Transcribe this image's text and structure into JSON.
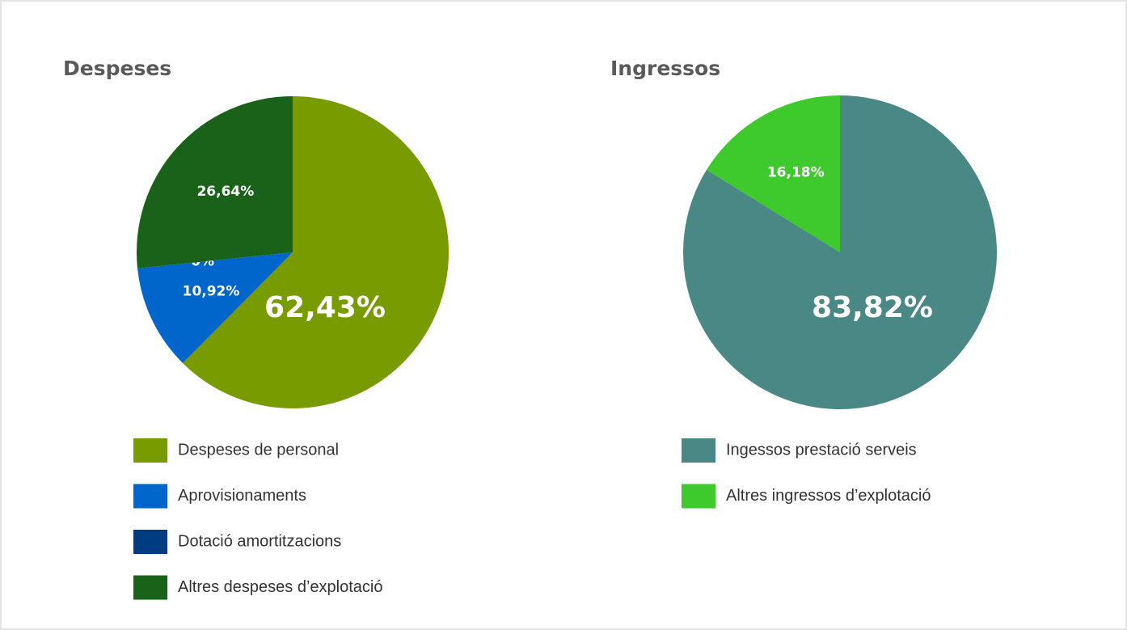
{
  "chart_data": [
    {
      "type": "pie",
      "title": "Despeses",
      "categories": [
        "Despeses de personal",
        "Aprovisionaments",
        "Dotació amortitzacions",
        "Altres despeses d’explotació"
      ],
      "values": [
        62.43,
        10.92,
        0,
        26.64
      ],
      "value_labels": [
        "62,43%",
        "10,92%",
        "0%",
        "26,64%"
      ],
      "colors": [
        "#789b00",
        "#0066cc",
        "#003d80",
        "#1a6119"
      ]
    },
    {
      "type": "pie",
      "title": "Ingressos",
      "categories": [
        "Ingessos prestació serveis",
        "Altres ingressos d’explotació"
      ],
      "values": [
        83.82,
        16.18
      ],
      "value_labels": [
        "83,82%",
        "16,18%"
      ],
      "colors": [
        "#4a8886",
        "#3ec92c"
      ]
    }
  ]
}
